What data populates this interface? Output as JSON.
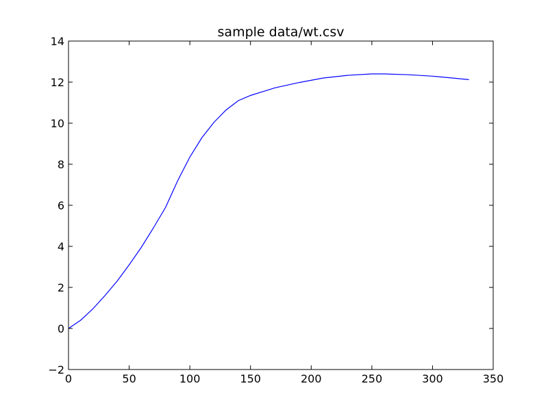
{
  "chart_data": {
    "type": "line",
    "title": "sample data/wt.csv",
    "xlabel": "",
    "ylabel": "",
    "xlim": [
      0,
      350
    ],
    "ylim": [
      -2,
      14
    ],
    "xticks": [
      0,
      50,
      100,
      150,
      200,
      250,
      300,
      350
    ],
    "yticks": [
      -2,
      0,
      2,
      4,
      6,
      8,
      10,
      12,
      14
    ],
    "xtick_labels": [
      "0",
      "50",
      "100",
      "150",
      "200",
      "250",
      "300",
      "350"
    ],
    "ytick_labels": [
      "−2",
      "0",
      "2",
      "4",
      "6",
      "8",
      "10",
      "12",
      "14"
    ],
    "grid": false,
    "legend": "none",
    "series": [
      {
        "color": "#0000ff",
        "x": [
          0,
          10,
          20,
          30,
          40,
          50,
          60,
          70,
          80,
          90,
          100,
          110,
          120,
          130,
          140,
          150,
          170,
          190,
          210,
          230,
          250,
          260,
          280,
          300,
          320,
          330
        ],
        "y": [
          0,
          0.4,
          0.95,
          1.6,
          2.3,
          3.1,
          3.95,
          4.9,
          5.9,
          7.2,
          8.35,
          9.3,
          10.05,
          10.65,
          11.1,
          11.35,
          11.72,
          11.98,
          12.2,
          12.33,
          12.4,
          12.4,
          12.36,
          12.29,
          12.18,
          12.12
        ]
      }
    ]
  }
}
